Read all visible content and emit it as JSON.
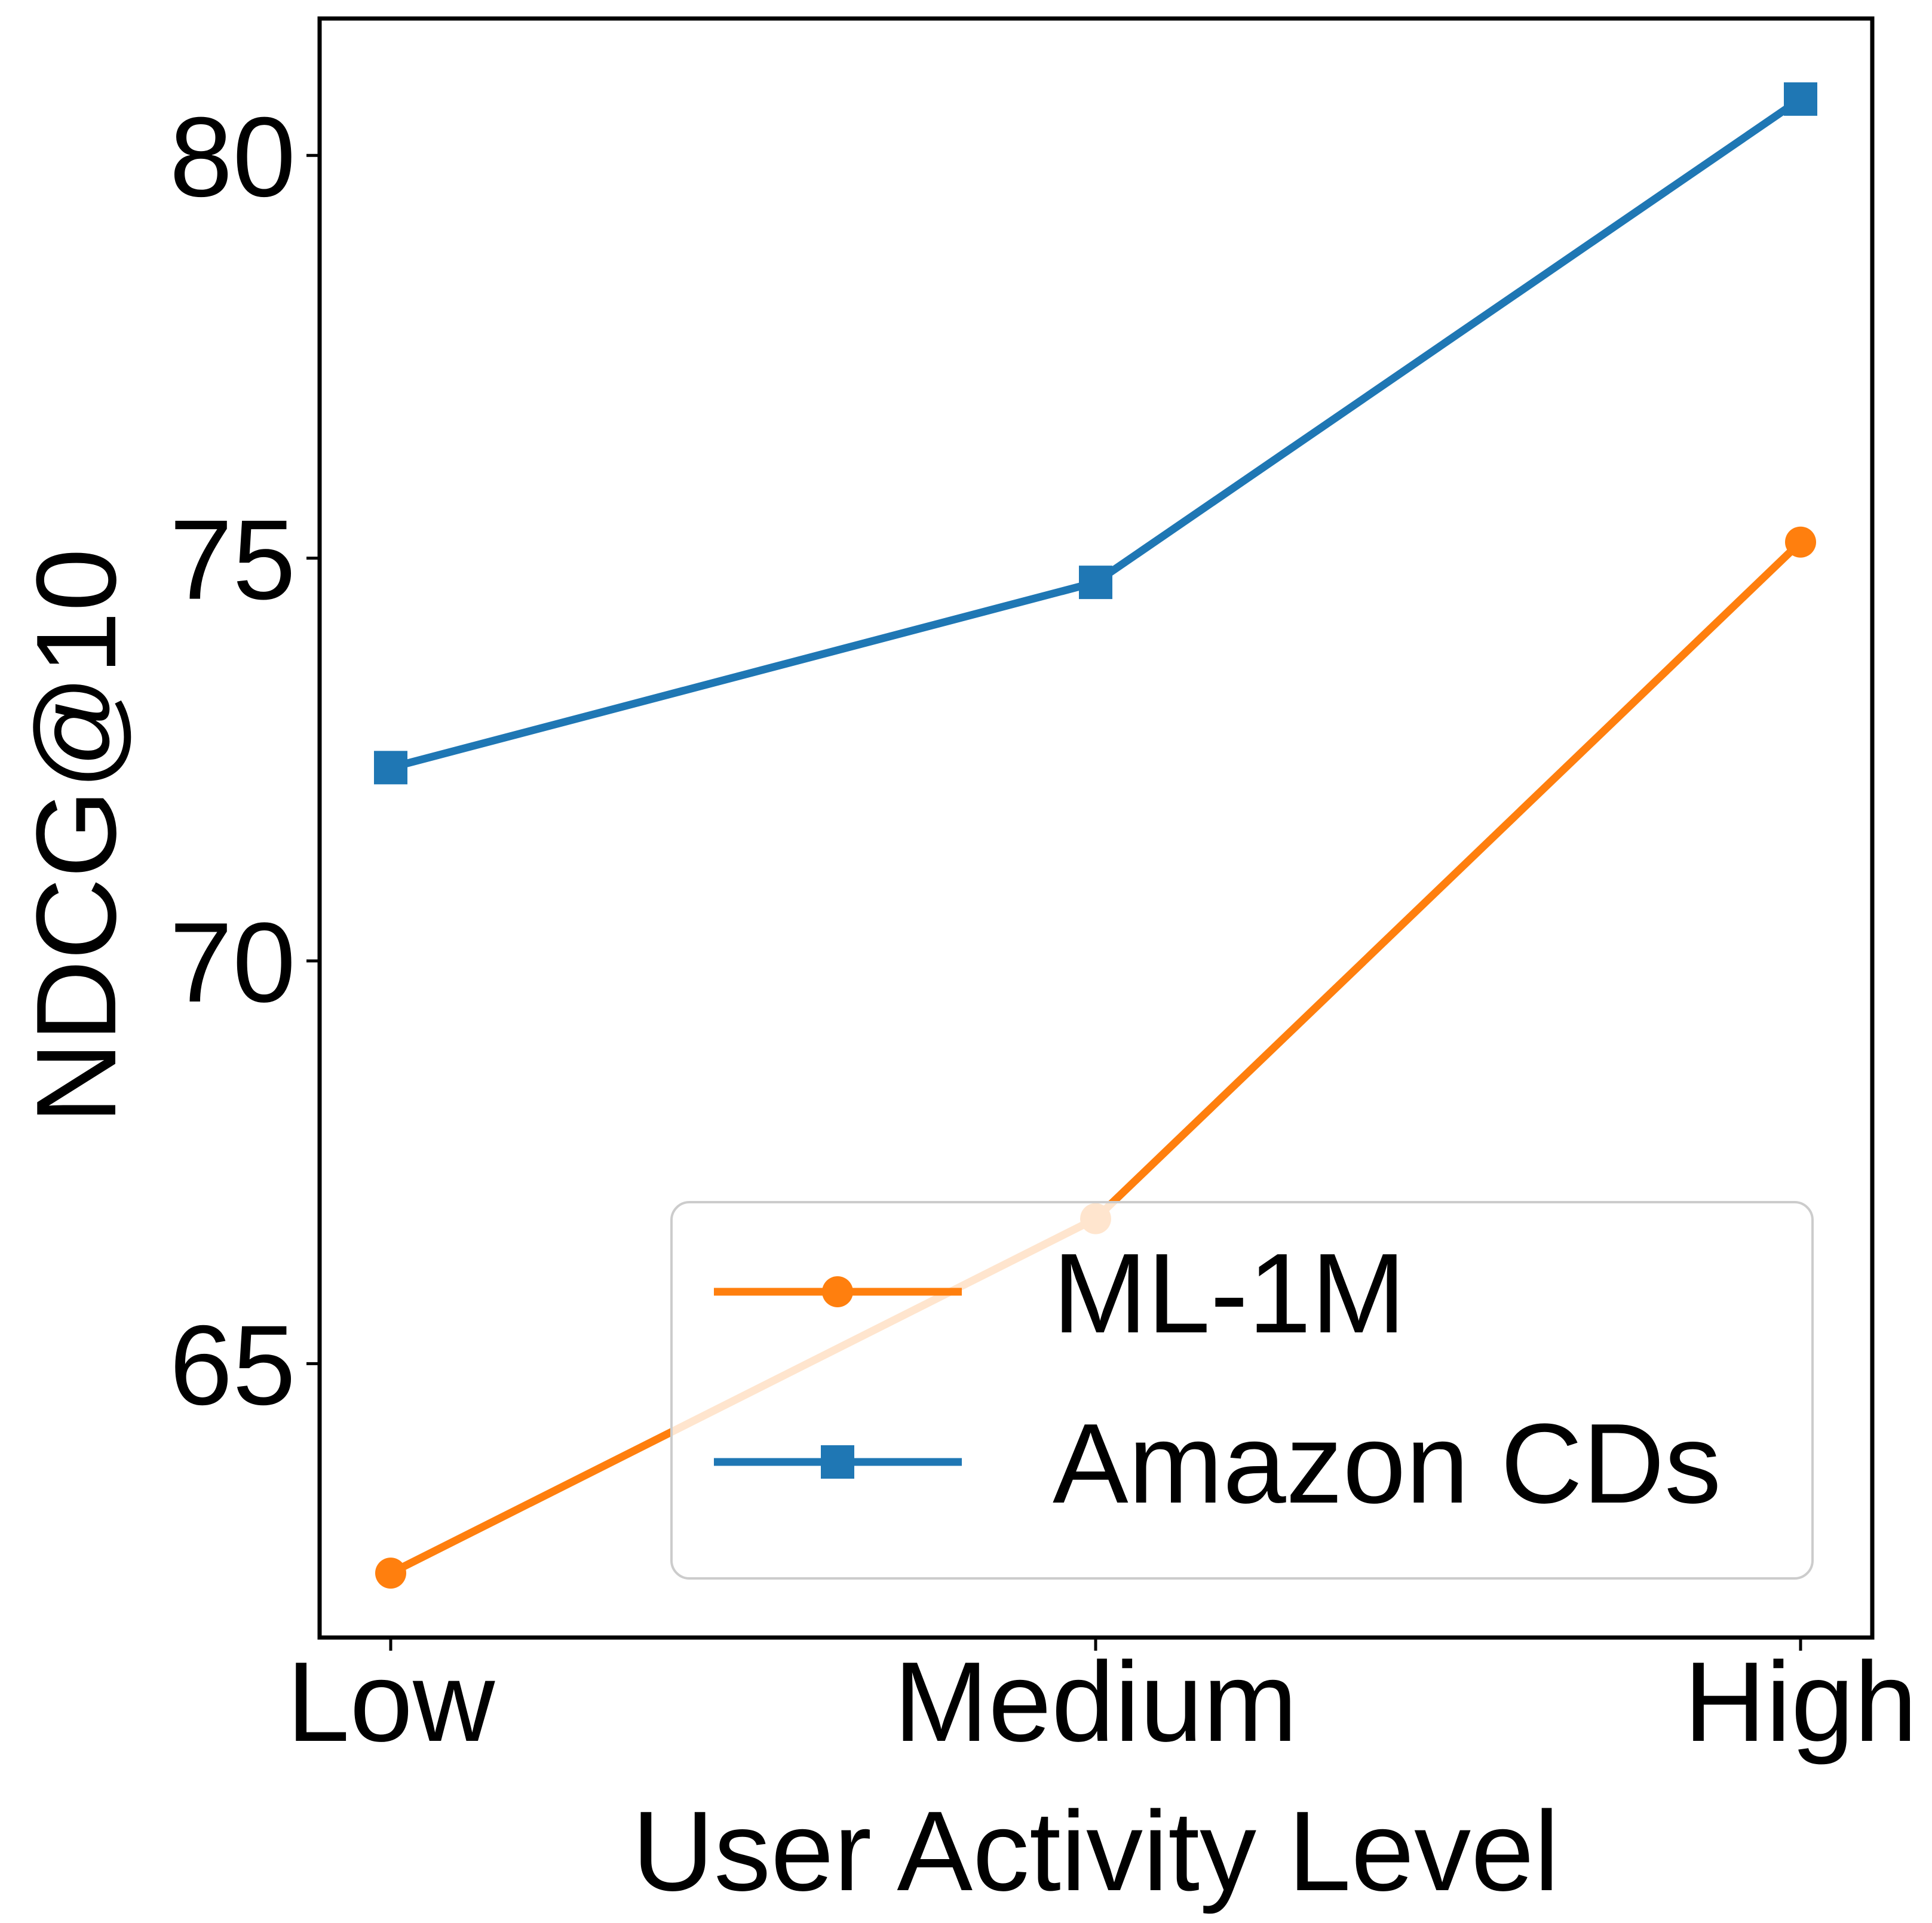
{
  "chart_data": {
    "type": "line",
    "title": "",
    "xlabel": "User Activity Level",
    "ylabel": "NDCG@10",
    "categories": [
      "Low",
      "Medium",
      "High"
    ],
    "ylim": [
      61.6,
      81.7
    ],
    "yticks": [
      65,
      70,
      75,
      80
    ],
    "ytick_labels": [
      "65",
      "70",
      "75",
      "80"
    ],
    "grid": false,
    "legend_position": "lower-right",
    "series": [
      {
        "name": "ML-1M",
        "color": "#ff7f0e",
        "marker": "circle",
        "values": [
          62.4,
          66.8,
          75.2
        ]
      },
      {
        "name": "Amazon CDs",
        "color": "#1f77b4",
        "marker": "square",
        "values": [
          72.4,
          74.7,
          80.7
        ]
      }
    ]
  }
}
